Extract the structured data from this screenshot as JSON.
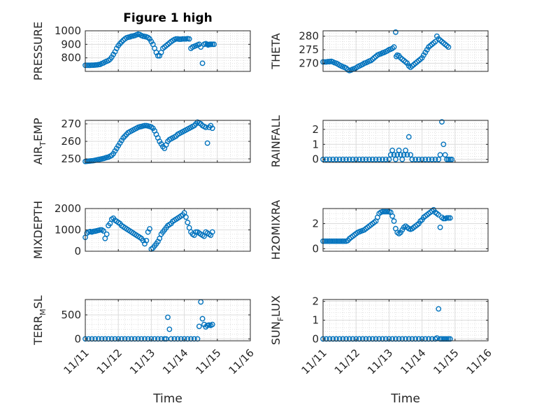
{
  "figure": {
    "title": "Figure 1 high"
  },
  "chart_data": [
    {
      "type": "scatter",
      "name_id": "pressure",
      "ylabel": "PRESSURE",
      "xlabel": "",
      "title": "Figure 1 high",
      "xlim": [
        0,
        5
      ],
      "ylim": [
        700,
        1000
      ],
      "yticks": [
        800,
        900,
        1000
      ],
      "xticks": [
        "11/11",
        "11/12",
        "11/13",
        "11/14",
        "11/15",
        "11/16"
      ],
      "x": [
        0,
        0.05,
        0.1,
        0.15,
        0.2,
        0.25,
        0.3,
        0.35,
        0.4,
        0.45,
        0.5,
        0.55,
        0.6,
        0.65,
        0.7,
        0.75,
        0.8,
        0.85,
        0.9,
        0.95,
        1.0,
        1.05,
        1.1,
        1.15,
        1.2,
        1.25,
        1.3,
        1.35,
        1.4,
        1.45,
        1.5,
        1.55,
        1.6,
        1.65,
        1.7,
        1.75,
        1.8,
        1.85,
        1.9,
        1.95,
        2.0,
        2.05,
        2.1,
        2.15,
        2.2,
        2.25,
        2.3,
        2.35,
        2.4,
        2.45,
        2.5,
        2.55,
        2.6,
        2.65,
        2.7,
        2.75,
        2.8,
        2.85,
        2.9,
        2.95,
        3.0,
        3.05,
        3.1,
        3.15,
        3.2,
        3.25,
        3.3,
        3.35,
        3.4,
        3.45,
        3.5,
        3.55,
        3.6,
        3.65,
        3.7,
        3.72,
        3.75,
        3.78,
        3.8,
        3.85,
        3.9
      ],
      "y": [
        745,
        745,
        745,
        745,
        746,
        746,
        747,
        748,
        750,
        752,
        758,
        763,
        770,
        775,
        780,
        790,
        805,
        825,
        845,
        870,
        890,
        905,
        918,
        930,
        940,
        948,
        952,
        955,
        960,
        962,
        965,
        970,
        975,
        972,
        965,
        960,
        958,
        955,
        950,
        940,
        920,
        900,
        870,
        840,
        815,
        815,
        840,
        870,
        880,
        890,
        900,
        910,
        920,
        928,
        935,
        940,
        940,
        938,
        938,
        940,
        940,
        940,
        942,
        940,
        870,
        880,
        885,
        890,
        895,
        900,
        880,
        760,
        900,
        905,
        900,
        895,
        898,
        900,
        900,
        900,
        900
      ]
    },
    {
      "type": "scatter",
      "name_id": "theta",
      "ylabel": "THETA",
      "xlabel": "",
      "xlim": [
        0,
        5
      ],
      "ylim": [
        267,
        282
      ],
      "yticks": [
        270,
        275,
        280
      ],
      "xticks": [
        "11/11",
        "11/12",
        "11/13",
        "11/14",
        "11/15",
        "11/16"
      ],
      "x": [
        0,
        0.05,
        0.1,
        0.15,
        0.2,
        0.25,
        0.3,
        0.35,
        0.4,
        0.45,
        0.5,
        0.55,
        0.6,
        0.65,
        0.7,
        0.75,
        0.8,
        0.85,
        0.9,
        0.95,
        1.0,
        1.05,
        1.1,
        1.15,
        1.2,
        1.25,
        1.3,
        1.35,
        1.4,
        1.45,
        1.5,
        1.55,
        1.6,
        1.65,
        1.7,
        1.75,
        1.8,
        1.85,
        1.9,
        1.95,
        2.0,
        2.05,
        2.1,
        2.15,
        2.2,
        2.22,
        2.25,
        2.3,
        2.35,
        2.4,
        2.45,
        2.5,
        2.55,
        2.6,
        2.65,
        2.7,
        2.75,
        2.8,
        2.85,
        2.9,
        2.95,
        3.0,
        3.05,
        3.1,
        3.15,
        3.2,
        3.25,
        3.3,
        3.35,
        3.4,
        3.45,
        3.5,
        3.55,
        3.6,
        3.65,
        3.7,
        3.75,
        3.8
      ],
      "y": [
        270.5,
        270.5,
        270.5,
        270.6,
        270.6,
        270.7,
        270.5,
        270.2,
        270,
        269.7,
        269.3,
        269,
        268.7,
        268.5,
        268.2,
        267.6,
        267.3,
        267.5,
        267.8,
        268,
        268.3,
        268.7,
        269,
        269.3,
        269.6,
        270,
        270.2,
        270.5,
        270.8,
        271,
        271.5,
        272,
        272.5,
        273,
        273.3,
        273.5,
        273.8,
        274,
        274.3,
        274.6,
        275,
        275.2,
        275.5,
        276,
        281.5,
        272.5,
        273,
        272.8,
        272,
        271.5,
        271,
        270.5,
        270,
        269,
        268.5,
        269,
        269.5,
        270,
        270.5,
        271,
        271.5,
        272,
        273,
        274,
        275,
        276,
        276.5,
        277,
        277.5,
        278,
        280,
        279,
        278.5,
        278,
        277.5,
        277,
        276.5,
        276
      ]
    },
    {
      "type": "scatter",
      "name_id": "air_temp",
      "ylabel": "AIR_TEMP",
      "xlabel": "",
      "xlim": [
        0,
        5
      ],
      "ylim": [
        248,
        272
      ],
      "yticks": [
        250,
        260,
        270
      ],
      "xticks": [
        "11/11",
        "11/12",
        "11/13",
        "11/14",
        "11/15",
        "11/16"
      ],
      "x": [
        0,
        0.05,
        0.1,
        0.15,
        0.2,
        0.25,
        0.3,
        0.35,
        0.4,
        0.45,
        0.5,
        0.55,
        0.6,
        0.65,
        0.7,
        0.75,
        0.8,
        0.85,
        0.9,
        0.95,
        1.0,
        1.05,
        1.1,
        1.15,
        1.2,
        1.25,
        1.3,
        1.35,
        1.4,
        1.45,
        1.5,
        1.55,
        1.6,
        1.65,
        1.7,
        1.75,
        1.8,
        1.85,
        1.9,
        1.95,
        2.0,
        2.05,
        2.1,
        2.15,
        2.2,
        2.25,
        2.3,
        2.35,
        2.4,
        2.45,
        2.5,
        2.55,
        2.6,
        2.65,
        2.7,
        2.75,
        2.8,
        2.85,
        2.9,
        2.95,
        3.0,
        3.05,
        3.1,
        3.15,
        3.2,
        3.25,
        3.3,
        3.35,
        3.4,
        3.45,
        3.5,
        3.55,
        3.6,
        3.65,
        3.7,
        3.75,
        3.8,
        3.85
      ],
      "y": [
        248.5,
        248.6,
        248.7,
        248.8,
        248.9,
        249,
        249.2,
        249.4,
        249.6,
        249.8,
        250,
        250.2,
        250.5,
        250.8,
        251,
        251.5,
        252,
        253,
        254.5,
        256,
        257.5,
        259,
        260.5,
        262,
        263,
        264,
        265,
        265.5,
        266,
        266.5,
        267,
        267.5,
        268,
        268.3,
        268.5,
        268.8,
        269,
        269,
        268.8,
        268.5,
        268.2,
        267.5,
        266,
        264,
        262,
        260,
        258.5,
        257,
        256,
        258,
        260,
        261,
        261.5,
        262,
        262.5,
        263,
        264,
        264.5,
        265,
        265.5,
        266,
        266.5,
        267,
        267.5,
        268,
        268.5,
        269,
        270,
        271,
        270.5,
        270,
        269,
        268.5,
        268,
        259,
        268,
        269,
        267.5
      ]
    },
    {
      "type": "scatter",
      "name_id": "rainfall",
      "ylabel": "RAINFALL",
      "xlabel": "",
      "xlim": [
        0,
        5
      ],
      "ylim": [
        -0.2,
        2.6
      ],
      "yticks": [
        0,
        1,
        2
      ],
      "xticks": [
        "11/11",
        "11/12",
        "11/13",
        "11/14",
        "11/15",
        "11/16"
      ],
      "x": [
        0,
        0.1,
        0.2,
        0.3,
        0.4,
        0.5,
        0.6,
        0.7,
        0.8,
        0.9,
        1.0,
        1.1,
        1.2,
        1.3,
        1.4,
        1.5,
        1.6,
        1.7,
        1.8,
        1.9,
        2.0,
        2.05,
        2.1,
        2.15,
        2.2,
        2.25,
        2.3,
        2.35,
        2.4,
        2.45,
        2.5,
        2.55,
        2.6,
        2.65,
        2.7,
        2.8,
        2.9,
        3.0,
        3.1,
        3.2,
        3.3,
        3.4,
        3.5,
        3.55,
        3.6,
        3.65,
        3.7,
        3.75,
        3.8,
        3.85,
        3.9
      ],
      "y": [
        0,
        0,
        0,
        0,
        0,
        0,
        0,
        0,
        0,
        0,
        0,
        0,
        0,
        0,
        0,
        0,
        0,
        0,
        0,
        0,
        0,
        0.3,
        0.6,
        0.3,
        0,
        0.3,
        0.6,
        0.3,
        0,
        0.3,
        0.6,
        0.3,
        1.5,
        0.3,
        0,
        0,
        0,
        0,
        0,
        0,
        0,
        0,
        0,
        0.3,
        2.5,
        1.0,
        0.3,
        0,
        0,
        0,
        0
      ]
    },
    {
      "type": "scatter",
      "name_id": "mixdepth",
      "ylabel": "MIXDEPTH",
      "xlabel": "",
      "xlim": [
        0,
        5
      ],
      "ylim": [
        0,
        2000
      ],
      "yticks": [
        0,
        1000,
        2000
      ],
      "xticks": [
        "11/11",
        "11/12",
        "11/13",
        "11/14",
        "11/15",
        "11/16"
      ],
      "x": [
        0,
        0.05,
        0.1,
        0.15,
        0.2,
        0.25,
        0.3,
        0.35,
        0.4,
        0.45,
        0.5,
        0.55,
        0.6,
        0.65,
        0.7,
        0.75,
        0.8,
        0.85,
        0.9,
        0.95,
        1.0,
        1.05,
        1.1,
        1.15,
        1.2,
        1.25,
        1.3,
        1.35,
        1.4,
        1.45,
        1.5,
        1.55,
        1.6,
        1.65,
        1.7,
        1.75,
        1.8,
        1.85,
        1.9,
        1.95,
        2.0,
        2.05,
        2.1,
        2.15,
        2.2,
        2.25,
        2.3,
        2.35,
        2.4,
        2.45,
        2.5,
        2.55,
        2.6,
        2.65,
        2.7,
        2.75,
        2.8,
        2.85,
        2.9,
        2.95,
        3.0,
        3.05,
        3.1,
        3.15,
        3.2,
        3.25,
        3.3,
        3.35,
        3.4,
        3.45,
        3.5,
        3.55,
        3.6,
        3.65,
        3.7,
        3.75,
        3.8,
        3.85
      ],
      "y": [
        650,
        850,
        900,
        920,
        900,
        930,
        940,
        960,
        980,
        1000,
        1000,
        950,
        600,
        800,
        1200,
        1300,
        1500,
        1550,
        1450,
        1400,
        1350,
        1300,
        1200,
        1150,
        1100,
        1050,
        1000,
        950,
        900,
        850,
        800,
        750,
        700,
        650,
        600,
        500,
        350,
        500,
        900,
        1050,
        100,
        150,
        250,
        350,
        450,
        600,
        800,
        900,
        1000,
        1100,
        1200,
        1250,
        1300,
        1400,
        1450,
        1500,
        1550,
        1600,
        1650,
        1700,
        1800,
        1600,
        1350,
        1100,
        900,
        800,
        750,
        900,
        900,
        850,
        800,
        750,
        700,
        900,
        850,
        800,
        750,
        900
      ]
    },
    {
      "type": "scatter",
      "name_id": "h2omixra",
      "ylabel": "H2OMIXRA",
      "xlabel": "",
      "xlim": [
        0,
        5
      ],
      "ylim": [
        -0.2,
        3.2
      ],
      "yticks": [
        0,
        2
      ],
      "xticks": [
        "11/11",
        "11/12",
        "11/13",
        "11/14",
        "11/15",
        "11/16"
      ],
      "x": [
        0,
        0.05,
        0.1,
        0.15,
        0.2,
        0.25,
        0.3,
        0.35,
        0.4,
        0.45,
        0.5,
        0.55,
        0.6,
        0.65,
        0.7,
        0.75,
        0.8,
        0.85,
        0.9,
        0.95,
        1.0,
        1.05,
        1.1,
        1.15,
        1.2,
        1.25,
        1.3,
        1.35,
        1.4,
        1.45,
        1.5,
        1.55,
        1.6,
        1.65,
        1.7,
        1.75,
        1.8,
        1.85,
        1.9,
        1.95,
        2.0,
        2.05,
        2.1,
        2.15,
        2.2,
        2.25,
        2.3,
        2.35,
        2.4,
        2.45,
        2.5,
        2.55,
        2.6,
        2.65,
        2.7,
        2.75,
        2.8,
        2.85,
        2.9,
        2.95,
        3.0,
        3.05,
        3.1,
        3.15,
        3.2,
        3.25,
        3.3,
        3.35,
        3.4,
        3.45,
        3.5,
        3.55,
        3.6,
        3.65,
        3.7,
        3.75,
        3.8,
        3.85
      ],
      "y": [
        0.6,
        0.6,
        0.6,
        0.6,
        0.6,
        0.6,
        0.6,
        0.6,
        0.6,
        0.6,
        0.6,
        0.6,
        0.6,
        0.6,
        0.6,
        0.65,
        0.8,
        0.9,
        1.0,
        1.1,
        1.2,
        1.3,
        1.35,
        1.4,
        1.45,
        1.5,
        1.6,
        1.7,
        1.8,
        1.9,
        2.0,
        2.1,
        2.2,
        2.5,
        2.8,
        2.9,
        2.95,
        2.95,
        2.95,
        2.95,
        2.95,
        2.9,
        2.6,
        2.2,
        1.6,
        1.3,
        1.2,
        1.3,
        1.5,
        1.7,
        1.8,
        1.7,
        1.6,
        1.55,
        1.6,
        1.7,
        1.8,
        1.9,
        2.0,
        2.2,
        2.3,
        2.5,
        2.6,
        2.7,
        2.8,
        2.9,
        3.0,
        3.1,
        2.9,
        2.8,
        2.7,
        1.7,
        2.5,
        2.4,
        2.4,
        2.45,
        2.45,
        2.45
      ]
    },
    {
      "type": "scatter",
      "name_id": "terr_msl",
      "ylabel": "TERR_MSL",
      "xlabel": "Time",
      "xlim": [
        0,
        5
      ],
      "ylim": [
        -40,
        820
      ],
      "yticks": [
        0,
        500
      ],
      "xticks": [
        "11/11",
        "11/12",
        "11/13",
        "11/14",
        "11/15",
        "11/16"
      ],
      "x": [
        0,
        0.1,
        0.2,
        0.3,
        0.4,
        0.5,
        0.6,
        0.7,
        0.8,
        0.9,
        1.0,
        1.1,
        1.2,
        1.3,
        1.4,
        1.5,
        1.6,
        1.7,
        1.8,
        1.9,
        2.0,
        2.1,
        2.2,
        2.3,
        2.4,
        2.45,
        2.5,
        2.55,
        2.6,
        2.7,
        2.8,
        2.9,
        3.0,
        3.1,
        3.2,
        3.3,
        3.4,
        3.45,
        3.5,
        3.55,
        3.6,
        3.65,
        3.7,
        3.75,
        3.8,
        3.85
      ],
      "y": [
        0,
        0,
        0,
        0,
        0,
        0,
        0,
        0,
        0,
        0,
        0,
        0,
        0,
        0,
        0,
        0,
        0,
        0,
        0,
        0,
        0,
        0,
        0,
        0,
        0,
        0,
        450,
        200,
        0,
        0,
        0,
        0,
        0,
        0,
        0,
        0,
        0,
        260,
        770,
        420,
        300,
        250,
        280,
        290,
        280,
        300
      ]
    },
    {
      "type": "scatter",
      "name_id": "sun_flux",
      "ylabel": "SUN_FLUX",
      "xlabel": "Time",
      "xlim": [
        0,
        5
      ],
      "ylim": [
        -0.1,
        2.1
      ],
      "yticks": [
        0,
        1,
        2
      ],
      "xticks": [
        "11/11",
        "11/12",
        "11/13",
        "11/14",
        "11/15",
        "11/16"
      ],
      "x": [
        0,
        0.1,
        0.2,
        0.3,
        0.4,
        0.5,
        0.6,
        0.7,
        0.8,
        0.9,
        1.0,
        1.1,
        1.2,
        1.3,
        1.4,
        1.5,
        1.6,
        1.7,
        1.8,
        1.9,
        2.0,
        2.1,
        2.2,
        2.3,
        2.4,
        2.5,
        2.6,
        2.7,
        2.8,
        2.9,
        3.0,
        3.1,
        3.2,
        3.3,
        3.4,
        3.45,
        3.5,
        3.55,
        3.6,
        3.65,
        3.7,
        3.75,
        3.8,
        3.85
      ],
      "y": [
        0,
        0,
        0,
        0,
        0,
        0,
        0,
        0,
        0,
        0,
        0,
        0,
        0,
        0,
        0,
        0,
        0,
        0,
        0,
        0,
        0,
        0,
        0,
        0,
        0,
        0,
        0,
        0,
        0,
        0,
        0,
        0,
        0,
        0,
        0,
        0.05,
        1.6,
        0,
        0,
        0,
        0,
        0,
        0,
        0
      ]
    }
  ]
}
